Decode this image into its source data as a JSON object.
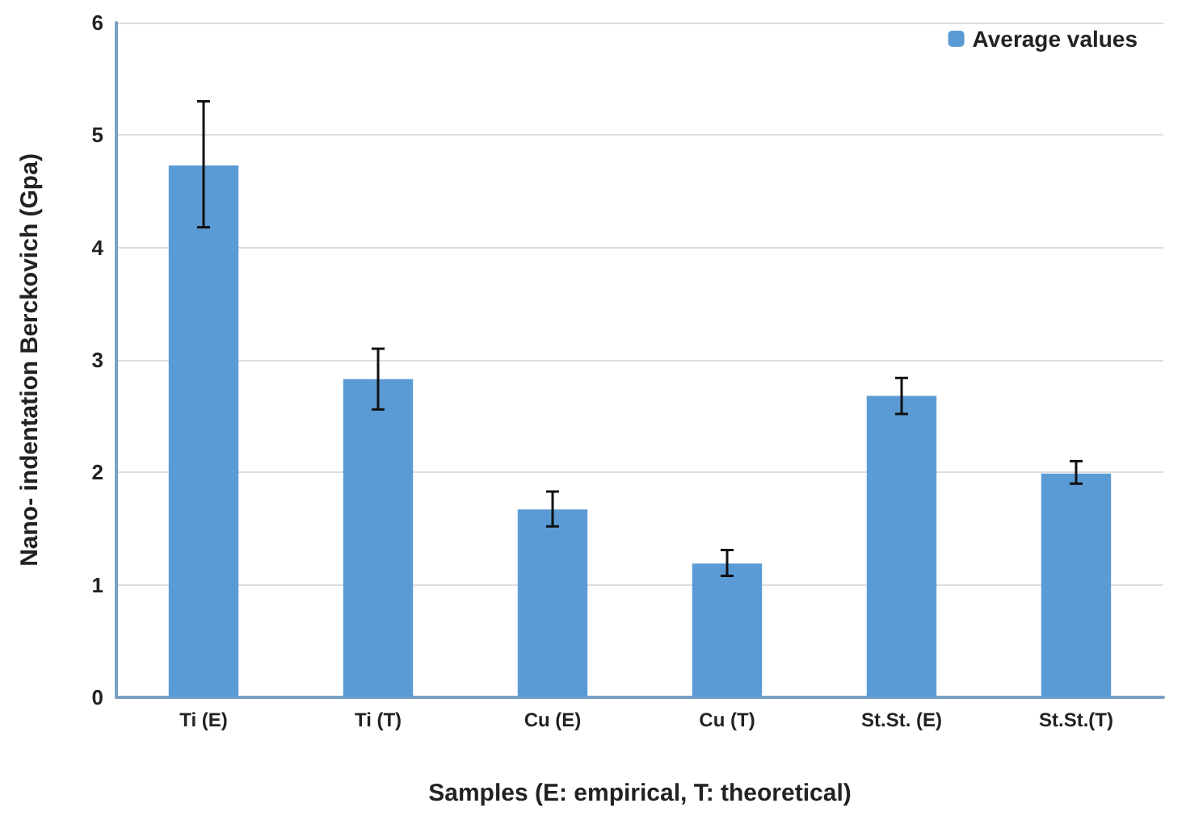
{
  "chart_data": {
    "type": "bar",
    "xlabel": "Samples (E: empirical, T: theoretical)",
    "ylabel": "Nano- indentation Berckovich (Gpa)",
    "categories": [
      "Ti (E)",
      "Ti (T)",
      "Cu (E)",
      "Cu (T)",
      "St.St. (E)",
      "St.St.(T)"
    ],
    "series": [
      {
        "name": "Average values",
        "color": "#5b9bd5",
        "values": [
          4.73,
          2.83,
          1.67,
          1.19,
          2.68,
          1.99
        ],
        "errors": [
          [
            4.18,
            5.3
          ],
          [
            2.56,
            3.1
          ],
          [
            1.52,
            1.83
          ],
          [
            1.08,
            1.31
          ],
          [
            2.52,
            2.84
          ],
          [
            1.9,
            2.1
          ]
        ]
      }
    ],
    "ylim": [
      0,
      6
    ],
    "yticks": [
      0,
      1,
      2,
      3,
      4,
      5,
      6
    ],
    "grid": "y",
    "legend": "top right"
  }
}
